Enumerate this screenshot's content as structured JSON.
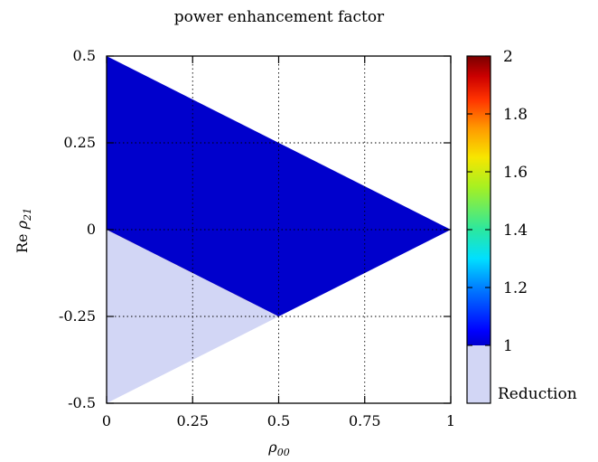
{
  "chart_data": {
    "type": "heatmap",
    "title": "power enhancement factor",
    "xlabel": "ρ",
    "xlabel_sub": "00",
    "ylabel_prefix": "Re ",
    "ylabel": "ρ",
    "ylabel_sub": "21",
    "xlim": [
      0,
      1
    ],
    "ylim": [
      -0.5,
      0.5
    ],
    "x_ticks": [
      0,
      0.25,
      0.5,
      0.75,
      1
    ],
    "x_tick_labels": [
      "0",
      "0.25",
      "0.5",
      "0.75",
      "1"
    ],
    "y_ticks": [
      -0.5,
      -0.25,
      0,
      0.25,
      0.5
    ],
    "y_tick_labels": [
      "-0.5",
      "-0.25",
      "0",
      "0.25",
      "0.5"
    ],
    "grid": true,
    "domain_triangle": [
      [
        0,
        0.5
      ],
      [
        0,
        -0.5
      ],
      [
        1,
        0
      ]
    ],
    "enhancement_region": [
      [
        0,
        0.5
      ],
      [
        1,
        0
      ],
      [
        0.5,
        -0.25
      ],
      [
        0,
        0
      ]
    ],
    "reduction_region": [
      [
        0,
        0
      ],
      [
        0.5,
        -0.25
      ],
      [
        0,
        -0.5
      ]
    ],
    "value_at_top_edge": 2.0,
    "value_at_lower_edge": 1.0,
    "colorbar": {
      "range": [
        0.8,
        2.0
      ],
      "ticks": [
        1,
        1.2,
        1.4,
        1.6,
        1.8,
        2
      ],
      "tick_labels": [
        "1",
        "1.2",
        "1.4",
        "1.6",
        "1.8",
        "2"
      ],
      "reduction_label": "Reduction",
      "reduction_color": "#d2d6f5",
      "colormap": [
        [
          1.0,
          "#0000cc"
        ],
        [
          1.05,
          "#0000ff"
        ],
        [
          1.2,
          "#007fff"
        ],
        [
          1.3,
          "#00dfff"
        ],
        [
          1.4,
          "#2be8a0"
        ],
        [
          1.55,
          "#a8f020"
        ],
        [
          1.65,
          "#f7e600"
        ],
        [
          1.75,
          "#ff9a00"
        ],
        [
          1.85,
          "#ff3300"
        ],
        [
          1.93,
          "#cc0000"
        ],
        [
          2.0,
          "#7a0000"
        ]
      ]
    }
  }
}
